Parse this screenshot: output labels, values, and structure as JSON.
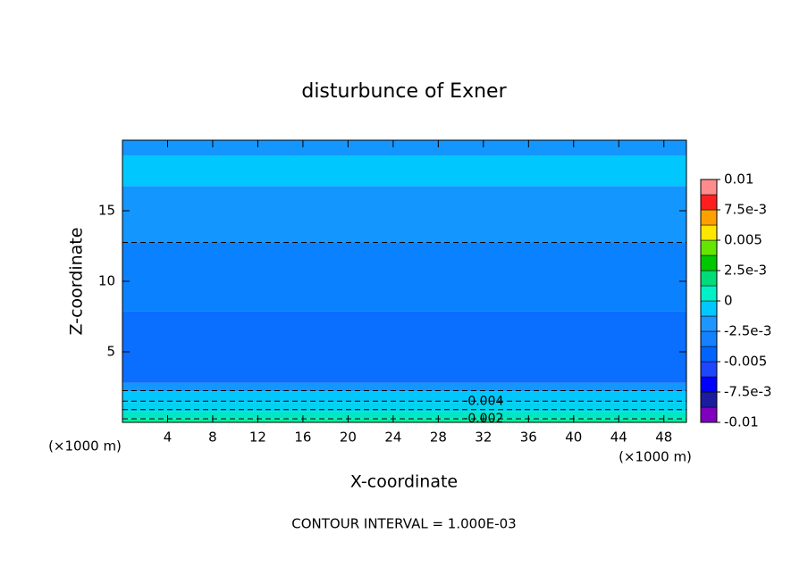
{
  "chart_data": {
    "type": "contour",
    "title": "disturbunce of Exner",
    "x_label": "X-coordinate",
    "y_label": "Z-coordinate",
    "x_unit_left": "(×1000 m)",
    "x_unit_right": "(×1000 m)",
    "footer": "CONTOUR INTERVAL = 1.000E-03",
    "xlim": [
      0,
      50
    ],
    "xticks": [
      4,
      8,
      12,
      16,
      20,
      24,
      28,
      32,
      36,
      40,
      44,
      48
    ],
    "ylim": [
      0,
      20
    ],
    "yticks": [
      5,
      10,
      15
    ],
    "regions": [
      {
        "zmin": 0,
        "zmax": 0.3,
        "color": "#00f0a0"
      },
      {
        "zmin": 0.3,
        "zmax": 0.8,
        "color": "#00e6c8"
      },
      {
        "zmin": 0.8,
        "zmax": 1.45,
        "color": "#00d2f0"
      },
      {
        "zmin": 1.45,
        "zmax": 2.2,
        "color": "#00c8ff"
      },
      {
        "zmin": 2.2,
        "zmax": 2.8,
        "color": "#1496ff"
      },
      {
        "zmin": 2.8,
        "zmax": 7.9,
        "color": "#0a6eff"
      },
      {
        "zmin": 7.9,
        "zmax": 12.75,
        "color": "#0a82ff"
      },
      {
        "zmin": 12.75,
        "zmax": 16.75,
        "color": "#1496ff"
      },
      {
        "zmin": 16.75,
        "zmax": 18.9,
        "color": "#00c8ff"
      },
      {
        "zmin": 18.9,
        "zmax": 20,
        "color": "#1496ff"
      }
    ],
    "contour_lines": [
      {
        "z": 12.75
      },
      {
        "z": 2.25
      },
      {
        "z": 1.5,
        "label": "-0.004",
        "label_x": 32
      },
      {
        "z": 0.9
      },
      {
        "z": 0.25,
        "label": "-0.002",
        "label_x": 32
      }
    ],
    "colorbar_lim": [
      -0.01,
      0.01
    ],
    "colorbar_colors": [
      "#8000c0",
      "#1c1ca0",
      "#0000ff",
      "#1e46ff",
      "#0064ff",
      "#1482ff",
      "#1e96ff",
      "#00c8ff",
      "#00f0c8",
      "#00dc78",
      "#00c800",
      "#64e600",
      "#ffe600",
      "#ffa000",
      "#ff1e1e",
      "#ff8c8c"
    ],
    "colorbar_ticks": [
      -0.01,
      {
        "value": -0.0075,
        "label": "-7.5e-3"
      },
      -0.005,
      {
        "value": -0.0025,
        "label": "-2.5e-3"
      },
      0,
      {
        "value": 0.0025,
        "label": "2.5e-3"
      },
      0.005,
      {
        "value": 0.0075,
        "label": "7.5e-3"
      },
      0.01
    ]
  }
}
